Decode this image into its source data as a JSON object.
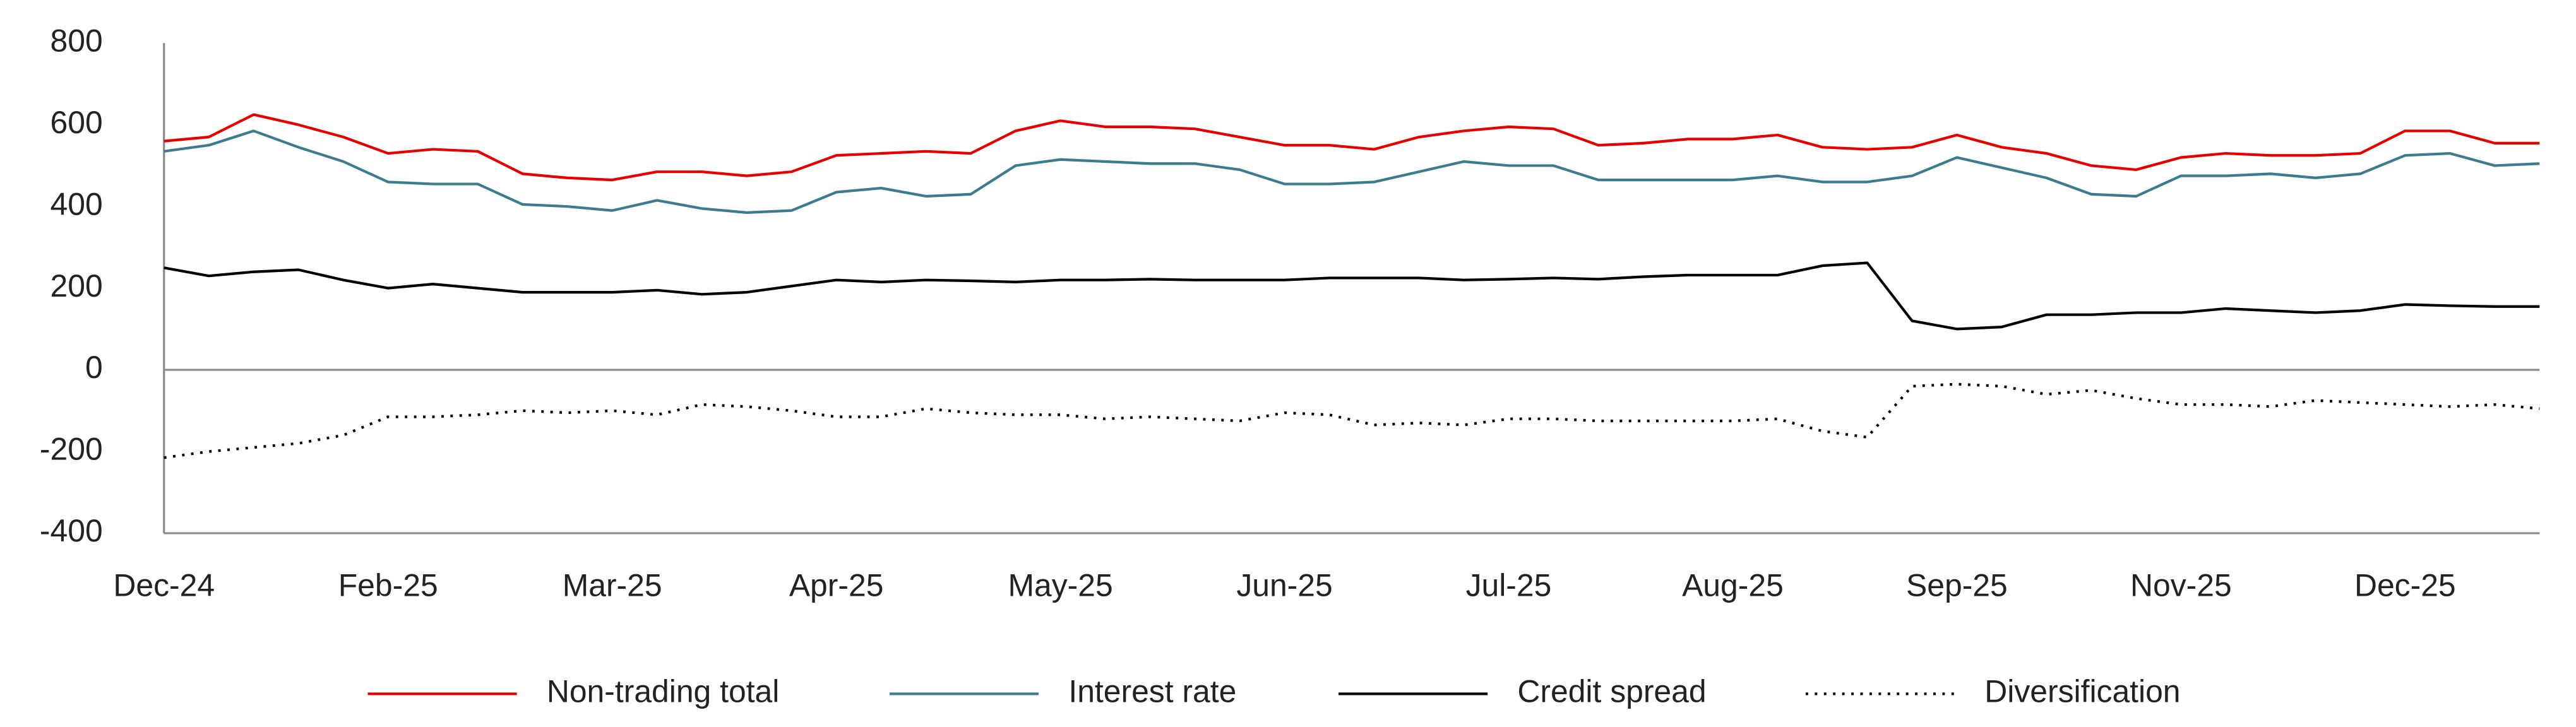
{
  "chart_data": {
    "type": "line",
    "categories": [
      "Dec-24",
      null,
      null,
      null,
      null,
      "Feb-25",
      null,
      null,
      null,
      null,
      "Mar-25",
      null,
      null,
      null,
      null,
      "Apr-25",
      null,
      null,
      null,
      null,
      "May-25",
      null,
      null,
      null,
      null,
      "Jun-25",
      null,
      null,
      null,
      null,
      "Jul-25",
      null,
      null,
      null,
      null,
      "Aug-25",
      null,
      null,
      null,
      null,
      "Sep-25",
      null,
      null,
      null,
      null,
      "Nov-25",
      null,
      null,
      null,
      null,
      "Dec-25",
      null,
      null,
      null
    ],
    "series": [
      {
        "name": "Non-trading total",
        "color": "#e60000",
        "line_style": "solid",
        "values": [
          560,
          570,
          625,
          600,
          570,
          530,
          540,
          535,
          480,
          470,
          465,
          485,
          485,
          475,
          485,
          525,
          530,
          535,
          530,
          585,
          610,
          595,
          595,
          590,
          570,
          550,
          550,
          540,
          570,
          585,
          595,
          590,
          550,
          555,
          565,
          565,
          575,
          545,
          540,
          545,
          575,
          545,
          530,
          500,
          490,
          520,
          530,
          525,
          525,
          530,
          585,
          585,
          555,
          555
        ]
      },
      {
        "name": "Interest rate",
        "color": "#3d7c8f",
        "line_style": "solid",
        "values": [
          535,
          550,
          585,
          545,
          510,
          460,
          455,
          455,
          405,
          400,
          390,
          415,
          395,
          385,
          390,
          435,
          445,
          425,
          430,
          500,
          515,
          510,
          505,
          505,
          490,
          455,
          455,
          460,
          485,
          510,
          500,
          500,
          465,
          465,
          465,
          465,
          475,
          460,
          460,
          475,
          520,
          495,
          470,
          430,
          425,
          475,
          475,
          480,
          470,
          480,
          525,
          530,
          500,
          505
        ]
      },
      {
        "name": "Credit spread",
        "color": "#000000",
        "line_style": "solid",
        "values": [
          250,
          230,
          240,
          245,
          220,
          200,
          210,
          200,
          190,
          190,
          190,
          195,
          185,
          190,
          205,
          220,
          215,
          220,
          218,
          215,
          220,
          220,
          222,
          220,
          220,
          220,
          225,
          225,
          225,
          220,
          222,
          225,
          222,
          228,
          232,
          232,
          232,
          255,
          262,
          120,
          100,
          105,
          135,
          135,
          140,
          140,
          150,
          145,
          140,
          145,
          160,
          157,
          155,
          155
        ]
      },
      {
        "name": "Diversification",
        "color": "#000000",
        "line_style": "dotted",
        "values": [
          -215,
          -200,
          -190,
          -180,
          -160,
          -115,
          -115,
          -110,
          -100,
          -105,
          -100,
          -110,
          -85,
          -90,
          -100,
          -115,
          -115,
          -95,
          -105,
          -110,
          -110,
          -120,
          -115,
          -120,
          -125,
          -105,
          -110,
          -135,
          -130,
          -135,
          -120,
          -120,
          -125,
          -125,
          -125,
          -125,
          -120,
          -150,
          -165,
          -40,
          -35,
          -40,
          -60,
          -50,
          -70,
          -85,
          -85,
          -90,
          -75,
          -80,
          -85,
          -90,
          -85,
          -95
        ]
      }
    ],
    "ylim": [
      -400,
      800
    ],
    "yticks": [
      800,
      600,
      400,
      200,
      0,
      -200,
      -400
    ],
    "grid": false,
    "legend": "bottom"
  }
}
